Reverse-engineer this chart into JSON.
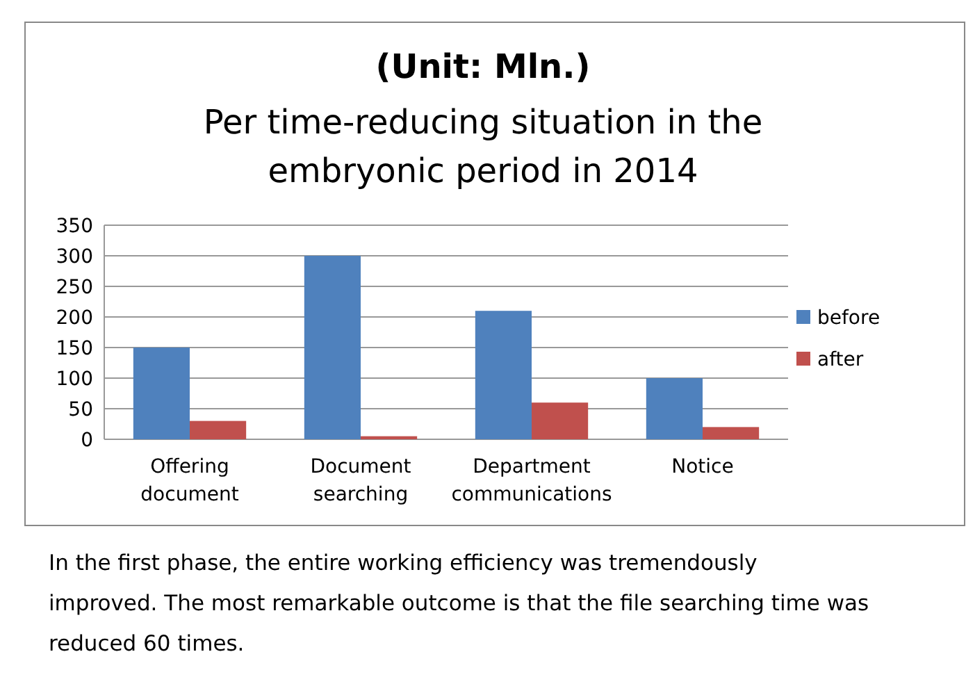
{
  "chart_data": {
    "type": "bar",
    "title": "(Unit: Mln.)",
    "subtitle": "Per time-reducing situation in the embryonic period in 2014",
    "categories": [
      "Offering document",
      "Document searching",
      "Department communications",
      "Notice"
    ],
    "series": [
      {
        "name": "before",
        "color": "#4f81bd",
        "values": [
          150,
          300,
          210,
          100
        ]
      },
      {
        "name": "after",
        "color": "#c0504d",
        "values": [
          30,
          5,
          60,
          20
        ]
      }
    ],
    "ylim": [
      0,
      350
    ],
    "yticks": [
      0,
      50,
      100,
      150,
      200,
      250,
      300,
      350
    ],
    "grid": "y",
    "legend": "right",
    "annotations": [
      "In the first phase, the entire working efficiency was tremendously improved. The most remarkable outcome is that the file searching time was reduced 60 times."
    ]
  }
}
